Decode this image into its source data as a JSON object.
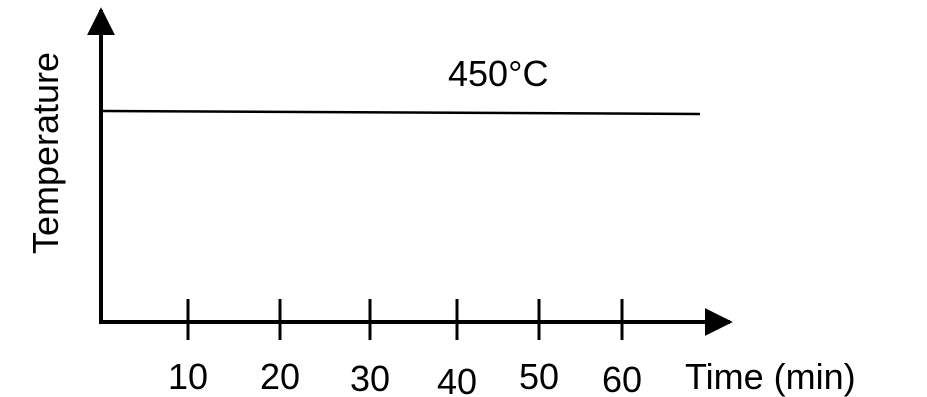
{
  "chart_data": {
    "type": "line",
    "title": "",
    "xlabel": "Time (min)",
    "ylabel": "Temperature",
    "x_ticks": [
      10,
      20,
      30,
      40,
      50,
      60
    ],
    "xlim": [
      0,
      70
    ],
    "grid": false,
    "legend": "none",
    "annotation": "450°C",
    "series": [
      {
        "x": [
          0,
          70
        ],
        "y": [
          450,
          450
        ]
      }
    ]
  }
}
